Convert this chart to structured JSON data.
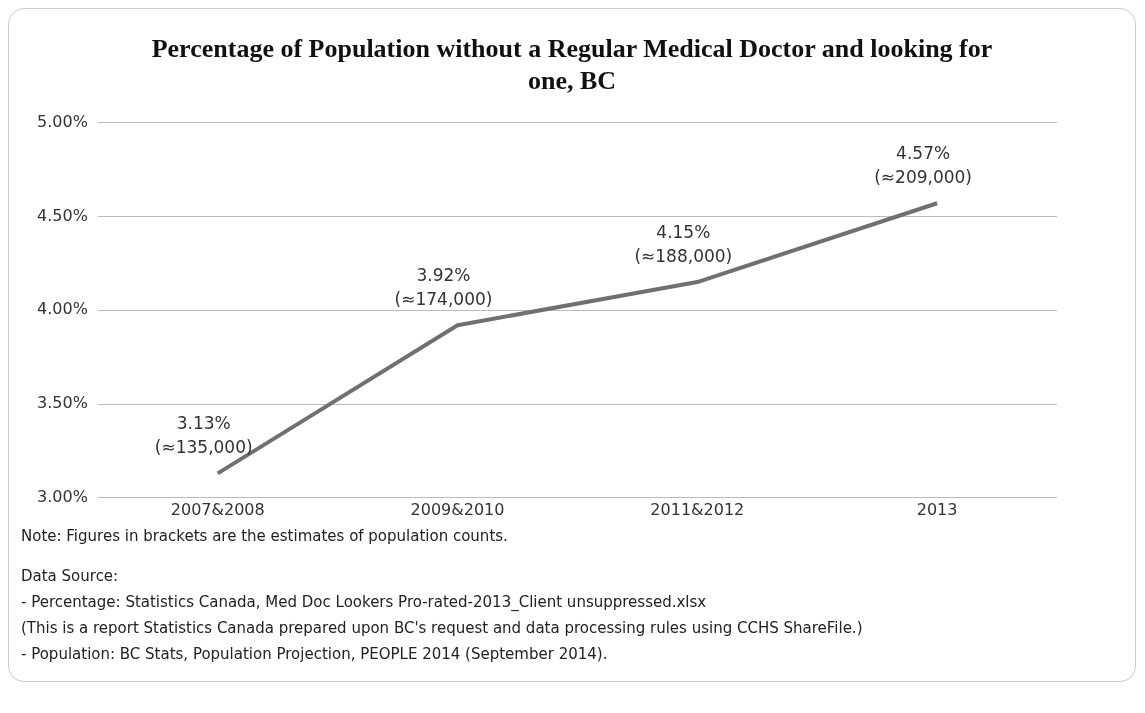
{
  "chart_data": {
    "type": "line",
    "title": "Percentage of Population without a Regular Medical Doctor and looking for one, BC",
    "categories": [
      "2007&2008",
      "2009&2010",
      "2011&2012",
      "2013"
    ],
    "series": [
      {
        "color": "#707070",
        "values": [
          3.13,
          3.92,
          4.15,
          4.57
        ],
        "value_labels": [
          "3.13%\n(≈135,000)",
          "3.92%\n(≈174,000)",
          "4.15%\n(≈188,000)",
          "4.57%\n(≈209,000)"
        ]
      }
    ],
    "ylim": [
      3,
      5
    ],
    "yticks": [
      {
        "value": 3,
        "label": "3.00%"
      },
      {
        "value": 3.5,
        "label": "3.50%"
      },
      {
        "value": 4,
        "label": "4.00%"
      },
      {
        "value": 4.5,
        "label": "4.50%"
      },
      {
        "value": 5,
        "label": "5.00%"
      }
    ],
    "grid": "y",
    "legend": false,
    "marker": "none",
    "line_style": "solid",
    "annotations": [
      "Note:  Figures in brackets are the estimates of population counts.",
      "Data Source:",
      "- Percentage:  Statistics Canada, Med Doc Lookers Pro-rated-2013_Client unsuppressed.xlsx",
      "(This is a report Statistics Canada prepared upon BC's request and data processing rules using CCHS ShareFile.)",
      "- Population: BC Stats, Population Projection, PEOPLE 2014 (September  2014)."
    ]
  }
}
